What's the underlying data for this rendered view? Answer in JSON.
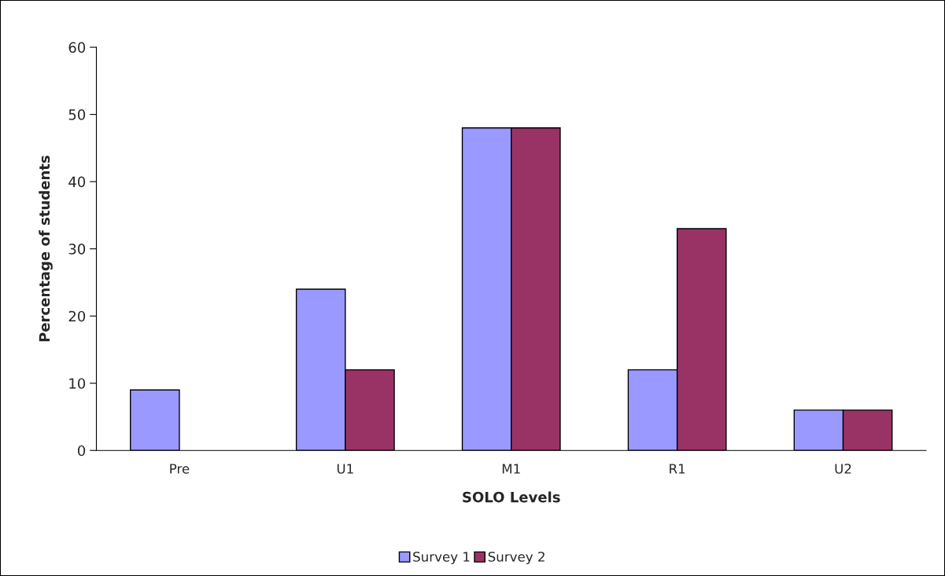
{
  "chart_data": {
    "type": "bar",
    "xlabel": "SOLO Levels",
    "ylabel": "Percentage of students",
    "categories": [
      "Pre",
      "U1",
      "M1",
      "R1",
      "U2"
    ],
    "series": [
      {
        "name": "Survey 1",
        "color": "#9999ff",
        "values": [
          9,
          24,
          48,
          12,
          6
        ]
      },
      {
        "name": "Survey 2",
        "color": "#993366",
        "values": [
          null,
          12,
          48,
          33,
          6
        ]
      }
    ],
    "ylim": [
      0,
      60
    ],
    "yticks": [
      0,
      10,
      20,
      30,
      40,
      50,
      60
    ],
    "grid": false,
    "legend": "bottom"
  }
}
